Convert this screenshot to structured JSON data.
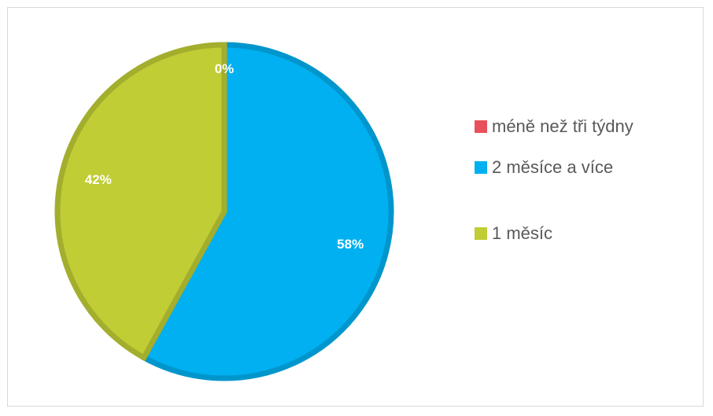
{
  "chart_data": {
    "type": "pie",
    "title": "",
    "categories": [
      "méně než tři týdny",
      "2 měsíce a více",
      "1 měsíc"
    ],
    "values": [
      0,
      58,
      42
    ],
    "data_labels": [
      "0%",
      "58%",
      "42%"
    ],
    "unit": "%",
    "colors": [
      "#e8505b",
      "#00b0f0",
      "#c0cd35"
    ],
    "legend_position": "right",
    "start_angle": "12 o'clock, clockwise"
  }
}
